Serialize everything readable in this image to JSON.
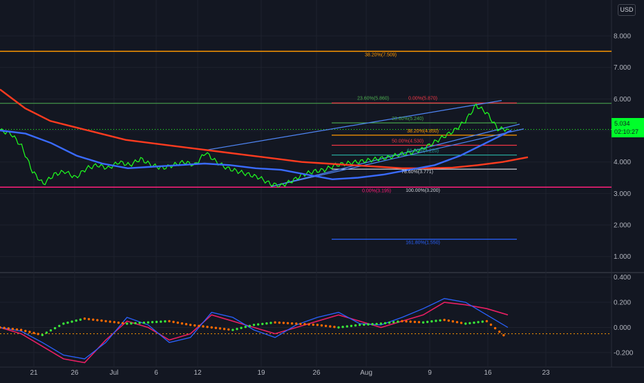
{
  "currency": "USD",
  "price_tag": {
    "price": "5.034",
    "countdown": "02:10:27"
  },
  "colors": {
    "background": "#131722",
    "grid": "#1e222d",
    "price_line": "#1fff1f",
    "ma_red": "#ff3b1f",
    "ma_blue": "#3a6bff",
    "channel": "#4f86f7",
    "fib_orange": "#ff9800",
    "fib_green": "#4caf50",
    "fib_red": "#f23645",
    "fib_teal": "#26a69a",
    "fib_white": "#d1d4dc",
    "fib_blue": "#2962ff",
    "support_pink": "#ff1f7a",
    "resistance_green": "#4caf50",
    "osc_red": "#e91e63",
    "osc_blue": "#2962ff",
    "osc_dots_green": "#39e639",
    "osc_dots_orange": "#ff6a00"
  },
  "chart_data": [
    {
      "type": "line",
      "name": "price-panel",
      "y_ticks": [
        "8.000",
        "7.000",
        "6.000",
        "5.000",
        "4.000",
        "3.000",
        "2.000",
        "1.000"
      ],
      "ylim": [
        0.6,
        8.7
      ],
      "x_ticks": [
        "21",
        "26",
        "Jul",
        "6",
        "12",
        "19",
        "26",
        "Aug",
        "9",
        "16",
        "23"
      ],
      "horizontal_levels": [
        {
          "label": "38.20%(7.509)",
          "value": 7.509
        },
        {
          "label": "",
          "value": 5.86
        },
        {
          "label": "",
          "value": 3.2
        }
      ],
      "fib_levels": [
        {
          "label": "23.60%(5.860)",
          "value": 5.86
        },
        {
          "label": "0.00%(5.870)",
          "value": 5.87
        },
        {
          "label": "23.60%(5.240)",
          "value": 5.24
        },
        {
          "label": "38.20%(4.850)",
          "value": 4.85
        },
        {
          "label": "50.00%(4.530)",
          "value": 4.53
        },
        {
          "label": "61.80%(4.220)",
          "value": 4.22
        },
        {
          "label": "78.60%(3.771)",
          "value": 3.771
        },
        {
          "label": "0.00%(3.195)",
          "value": 3.195
        },
        {
          "label": "100.00%(3.200)",
          "value": 3.2
        },
        {
          "label": "161.80%(1.550)",
          "value": 1.55
        }
      ],
      "series": [
        {
          "values": [
            5.0,
            4.9,
            4.5,
            3.7,
            3.3,
            3.6,
            3.7,
            3.5,
            3.8,
            3.9,
            3.8,
            4.0,
            3.9,
            4.1,
            3.9,
            3.8,
            3.9,
            4.0,
            3.9,
            4.3,
            4.0,
            3.8,
            3.7,
            3.6,
            3.5,
            3.3,
            3.25,
            3.4,
            3.6,
            3.7,
            3.75,
            3.9,
            3.95,
            4.0,
            4.05,
            4.1,
            4.15,
            4.25,
            4.3,
            4.4,
            4.6,
            4.8,
            5.0,
            5.3,
            5.8,
            5.55,
            5.05,
            5.034
          ]
        },
        {
          "values": [
            6.3,
            5.7,
            5.3,
            5.1,
            4.9,
            4.7,
            4.6,
            4.5,
            4.4,
            4.3,
            4.2,
            4.1,
            4.0,
            3.95,
            3.9,
            3.85,
            3.8,
            3.8,
            3.82,
            3.9,
            4.0,
            4.15
          ]
        },
        {
          "values": [
            5.0,
            4.9,
            4.6,
            4.2,
            3.95,
            3.8,
            3.85,
            3.9,
            3.95,
            3.9,
            3.8,
            3.75,
            3.6,
            3.45,
            3.5,
            3.6,
            3.75,
            3.9,
            4.2,
            4.6,
            5.0
          ]
        }
      ]
    },
    {
      "type": "line",
      "name": "oscillator-panel",
      "y_ticks": [
        "0.400",
        "0.200",
        "0.000",
        "-0.200"
      ],
      "ylim": [
        -0.25,
        0.42
      ],
      "series": [
        {
          "values": [
            0.0,
            -0.05,
            -0.15,
            -0.25,
            -0.28,
            -0.1,
            0.05,
            0.0,
            -0.1,
            -0.05,
            0.1,
            0.05,
            0.0,
            -0.05,
            0.0,
            0.05,
            0.1,
            0.05,
            0.0,
            0.05,
            0.1,
            0.2,
            0.18,
            0.15,
            0.1
          ]
        },
        {
          "values": [
            0.0,
            -0.03,
            -0.12,
            -0.22,
            -0.25,
            -0.12,
            0.08,
            0.02,
            -0.12,
            -0.08,
            0.12,
            0.08,
            -0.02,
            -0.08,
            0.02,
            0.08,
            0.12,
            0.03,
            0.02,
            0.08,
            0.15,
            0.23,
            0.2,
            0.1,
            0.0
          ]
        },
        {
          "values": [
            0.0,
            -0.02,
            -0.06,
            0.03,
            0.07,
            0.05,
            0.03,
            0.04,
            0.05,
            0.02,
            0.0,
            -0.02,
            0.02,
            0.04,
            0.03,
            0.02,
            0.0,
            0.02,
            0.03,
            0.05,
            0.04,
            0.06,
            0.03,
            0.05,
            -0.09
          ]
        }
      ]
    }
  ]
}
